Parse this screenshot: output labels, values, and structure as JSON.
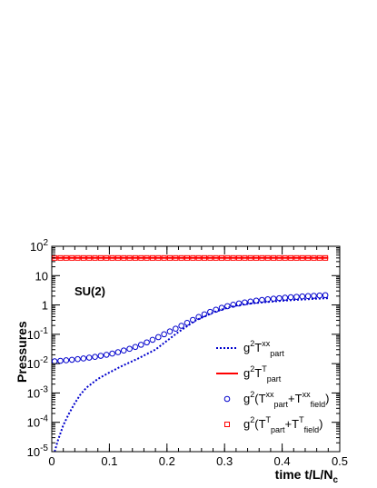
{
  "chart_data": {
    "type": "line",
    "title": "",
    "annotation": "SU(2)",
    "xlabel": "time t/L/N",
    "xlabel_sub": "c",
    "ylabel": "Pressures",
    "xlim": [
      0,
      0.5
    ],
    "ylim": [
      1e-05,
      100
    ],
    "yscale": "log",
    "grid": false,
    "legend_position": "bottom-right",
    "x_ticks": [
      0,
      0.1,
      0.2,
      0.3,
      0.4,
      0.5
    ],
    "x_tick_labels": [
      "0",
      "0.1",
      "0.2",
      "0.3",
      "0.4",
      "0.5"
    ],
    "y_tick_values": [
      1e-05,
      0.0001,
      0.001,
      0.01,
      0.1,
      1,
      10,
      100
    ],
    "y_tick_labels": [
      {
        "base": "10",
        "exp": "-5"
      },
      {
        "base": "10",
        "exp": "-4"
      },
      {
        "base": "10",
        "exp": "-3"
      },
      {
        "base": "10",
        "exp": "-2"
      },
      {
        "base": "10",
        "exp": "-1"
      },
      {
        "base": "1",
        "exp": ""
      },
      {
        "base": "10",
        "exp": ""
      },
      {
        "base": "10",
        "exp": "2"
      }
    ],
    "series": [
      {
        "legend": {
          "pre": "g",
          "sup1": "2",
          "mid": "T",
          "sup2": "xx",
          "sub2": "part",
          "post": ""
        },
        "style": "dotted-line",
        "color": "#0000cc",
        "x": [
          0.005,
          0.01,
          0.02,
          0.03,
          0.04,
          0.05,
          0.06,
          0.08,
          0.1,
          0.12,
          0.15,
          0.18,
          0.2,
          0.22,
          0.25,
          0.28,
          0.3,
          0.32,
          0.35,
          0.4,
          0.45,
          0.48
        ],
        "y": [
          1e-05,
          2.2e-05,
          8e-05,
          0.0002,
          0.00045,
          0.0009,
          0.0015,
          0.003,
          0.005,
          0.008,
          0.015,
          0.03,
          0.06,
          0.12,
          0.3,
          0.55,
          0.75,
          0.95,
          1.15,
          1.4,
          1.6,
          1.7
        ]
      },
      {
        "legend": {
          "pre": "g",
          "sup1": "2",
          "mid": "T",
          "sup2": "T",
          "sub2": "part",
          "post": ""
        },
        "style": "solid-line",
        "color": "#ff0000",
        "x": [
          0,
          0.48
        ],
        "y": [
          40,
          40
        ]
      },
      {
        "legend": {
          "pre": "g",
          "sup1": "2",
          "mid": "(T",
          "sup2": "xx",
          "sub2": "part",
          "mid2": "+T",
          "sup3": "xx",
          "sub3": "field",
          "post": ")"
        },
        "style": "open-circle",
        "color": "#0000cc",
        "x": [
          0.005,
          0.015,
          0.025,
          0.035,
          0.045,
          0.055,
          0.065,
          0.075,
          0.085,
          0.095,
          0.105,
          0.115,
          0.125,
          0.135,
          0.145,
          0.155,
          0.165,
          0.175,
          0.185,
          0.195,
          0.205,
          0.215,
          0.225,
          0.235,
          0.245,
          0.255,
          0.265,
          0.275,
          0.285,
          0.295,
          0.305,
          0.315,
          0.325,
          0.335,
          0.345,
          0.355,
          0.365,
          0.375,
          0.385,
          0.395,
          0.405,
          0.415,
          0.425,
          0.435,
          0.445,
          0.455,
          0.465,
          0.475
        ],
        "y": [
          0.012,
          0.0125,
          0.013,
          0.0135,
          0.0142,
          0.015,
          0.016,
          0.017,
          0.0185,
          0.02,
          0.022,
          0.0245,
          0.028,
          0.032,
          0.037,
          0.044,
          0.053,
          0.065,
          0.08,
          0.1,
          0.125,
          0.155,
          0.195,
          0.245,
          0.31,
          0.39,
          0.48,
          0.58,
          0.69,
          0.8,
          0.91,
          1.02,
          1.12,
          1.22,
          1.31,
          1.4,
          1.48,
          1.56,
          1.63,
          1.7,
          1.77,
          1.83,
          1.89,
          1.95,
          2.0,
          2.05,
          2.1,
          2.15
        ]
      },
      {
        "legend": {
          "pre": "g",
          "sup1": "2",
          "mid": "(T",
          "sup2": "T",
          "sub2": "part",
          "mid2": "+T",
          "sup3": "T",
          "sub3": "field",
          "post": ")"
        },
        "style": "open-square",
        "color": "#ff0000",
        "x": [
          0.005,
          0.015,
          0.025,
          0.035,
          0.045,
          0.055,
          0.065,
          0.075,
          0.085,
          0.095,
          0.105,
          0.115,
          0.125,
          0.135,
          0.145,
          0.155,
          0.165,
          0.175,
          0.185,
          0.195,
          0.205,
          0.215,
          0.225,
          0.235,
          0.245,
          0.255,
          0.265,
          0.275,
          0.285,
          0.295,
          0.305,
          0.315,
          0.325,
          0.335,
          0.345,
          0.355,
          0.365,
          0.375,
          0.385,
          0.395,
          0.405,
          0.415,
          0.425,
          0.435,
          0.445,
          0.455,
          0.465,
          0.475
        ],
        "y": [
          40,
          40,
          40,
          40,
          40,
          40,
          40,
          40,
          40,
          40,
          40,
          40,
          40,
          40,
          40,
          40,
          40,
          40,
          40,
          40,
          40,
          40,
          40,
          40,
          40,
          40,
          40,
          40,
          40,
          40,
          40,
          40,
          40,
          40,
          40,
          40,
          40,
          40,
          40,
          40,
          40,
          40,
          40,
          40,
          40,
          40,
          40,
          40
        ]
      }
    ]
  }
}
